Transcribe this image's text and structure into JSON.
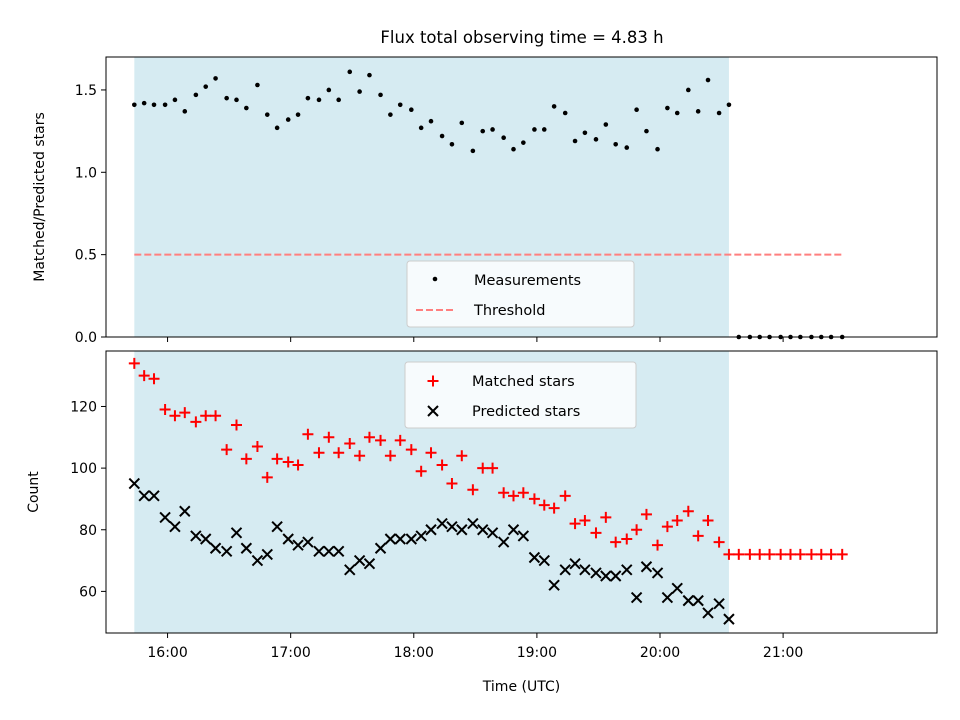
{
  "title": "Flux total observing time = 4.83 h",
  "chart_data": [
    {
      "type": "scatter",
      "panel": "top",
      "ylabel": "Matched/Predicted stars",
      "ylim": [
        0,
        1.7
      ],
      "yticks": [
        0.0,
        0.5,
        1.0,
        1.5
      ],
      "ytick_labels": [
        "0.0",
        "0.5",
        "1.0",
        "1.5"
      ],
      "x_unit": "hours (UTC)",
      "xlim": [
        15.5,
        22.25
      ],
      "shaded_interval": [
        15.73,
        20.56
      ],
      "shade_color": "#add8e6",
      "legend_position": "lower-center",
      "series": [
        {
          "name": "Measurements",
          "marker": "dot",
          "color": "#000000",
          "x": [
            15.73,
            15.81,
            15.89,
            15.98,
            16.06,
            16.14,
            16.23,
            16.31,
            16.39,
            16.48,
            16.56,
            16.64,
            16.73,
            16.81,
            16.89,
            16.98,
            17.06,
            17.14,
            17.23,
            17.31,
            17.39,
            17.48,
            17.56,
            17.64,
            17.73,
            17.81,
            17.89,
            17.98,
            18.06,
            18.14,
            18.23,
            18.31,
            18.39,
            18.48,
            18.56,
            18.64,
            18.73,
            18.81,
            18.89,
            18.98,
            19.06,
            19.14,
            19.23,
            19.31,
            19.39,
            19.48,
            19.56,
            19.64,
            19.73,
            19.81,
            19.89,
            19.98,
            20.06,
            20.14,
            20.23,
            20.31,
            20.39,
            20.48,
            20.56,
            20.64,
            20.73,
            20.81,
            20.89,
            20.98,
            21.06,
            21.14,
            21.23,
            21.31,
            21.39,
            21.48
          ],
          "y": [
            1.41,
            1.42,
            1.41,
            1.41,
            1.44,
            1.37,
            1.47,
            1.52,
            1.57,
            1.45,
            1.44,
            1.39,
            1.53,
            1.35,
            1.27,
            1.32,
            1.35,
            1.45,
            1.44,
            1.5,
            1.44,
            1.61,
            1.49,
            1.59,
            1.47,
            1.35,
            1.41,
            1.38,
            1.27,
            1.31,
            1.22,
            1.17,
            1.3,
            1.13,
            1.25,
            1.26,
            1.21,
            1.14,
            1.18,
            1.26,
            1.26,
            1.4,
            1.36,
            1.19,
            1.24,
            1.2,
            1.29,
            1.17,
            1.15,
            1.38,
            1.25,
            1.14,
            1.39,
            1.36,
            1.5,
            1.37,
            1.56,
            1.36,
            1.41,
            0,
            0,
            0,
            0,
            0,
            0,
            0,
            0,
            0,
            0,
            0
          ]
        },
        {
          "name": "Threshold",
          "marker": "dashed-line",
          "color": "#ff7f7f",
          "x": [
            15.73,
            21.48
          ],
          "y": [
            0.5,
            0.5
          ]
        }
      ]
    },
    {
      "type": "scatter",
      "panel": "bottom",
      "xlabel": "Time (UTC)",
      "ylabel": "Count",
      "ylim": [
        46.5,
        138
      ],
      "yticks": [
        60,
        80,
        100,
        120
      ],
      "ytick_labels": [
        "60",
        "80",
        "100",
        "120"
      ],
      "xticks": [
        16,
        17,
        18,
        19,
        20,
        21
      ],
      "xtick_labels": [
        "16:00",
        "17:00",
        "18:00",
        "19:00",
        "20:00",
        "21:00"
      ],
      "x_unit": "hours (UTC)",
      "xlim": [
        15.5,
        22.25
      ],
      "shaded_interval": [
        15.73,
        20.56
      ],
      "shade_color": "#add8e6",
      "legend_position": "upper-center",
      "series": [
        {
          "name": "Matched stars",
          "marker": "plus",
          "color": "#ff0000",
          "x": [
            15.73,
            15.81,
            15.89,
            15.98,
            16.06,
            16.14,
            16.23,
            16.31,
            16.39,
            16.48,
            16.56,
            16.64,
            16.73,
            16.81,
            16.89,
            16.98,
            17.06,
            17.14,
            17.23,
            17.31,
            17.39,
            17.48,
            17.56,
            17.64,
            17.73,
            17.81,
            17.89,
            17.98,
            18.06,
            18.14,
            18.23,
            18.31,
            18.39,
            18.48,
            18.56,
            18.64,
            18.73,
            18.81,
            18.89,
            18.98,
            19.06,
            19.14,
            19.23,
            19.31,
            19.39,
            19.48,
            19.56,
            19.64,
            19.73,
            19.81,
            19.89,
            19.98,
            20.06,
            20.14,
            20.23,
            20.31,
            20.39,
            20.48,
            20.56,
            20.64,
            20.73,
            20.81,
            20.89,
            20.98,
            21.06,
            21.14,
            21.23,
            21.31,
            21.39,
            21.48
          ],
          "y": [
            134,
            130,
            129,
            119,
            117,
            118,
            115,
            117,
            117,
            106,
            114,
            103,
            107,
            97,
            103,
            102,
            101,
            111,
            105,
            110,
            105,
            108,
            104,
            110,
            109,
            104,
            109,
            106,
            99,
            105,
            101,
            95,
            104,
            93,
            100,
            100,
            92,
            91,
            92,
            90,
            88,
            87,
            91,
            82,
            83,
            79,
            84,
            76,
            77,
            80,
            85,
            75,
            81,
            83,
            86,
            78,
            83,
            76,
            72,
            72,
            72,
            72,
            72,
            72,
            72,
            72,
            72,
            72,
            72,
            72
          ]
        },
        {
          "name": "Predicted stars",
          "marker": "x",
          "color": "#000000",
          "x": [
            15.73,
            15.81,
            15.89,
            15.98,
            16.06,
            16.14,
            16.23,
            16.31,
            16.39,
            16.48,
            16.56,
            16.64,
            16.73,
            16.81,
            16.89,
            16.98,
            17.06,
            17.14,
            17.23,
            17.31,
            17.39,
            17.48,
            17.56,
            17.64,
            17.73,
            17.81,
            17.89,
            17.98,
            18.06,
            18.14,
            18.23,
            18.31,
            18.39,
            18.48,
            18.56,
            18.64,
            18.73,
            18.81,
            18.89,
            18.98,
            19.06,
            19.14,
            19.23,
            19.31,
            19.39,
            19.48,
            19.56,
            19.64,
            19.73,
            19.81,
            19.89,
            19.98,
            20.06,
            20.14,
            20.23,
            20.31,
            20.39,
            20.48,
            20.56
          ],
          "y": [
            95,
            91,
            91,
            84,
            81,
            86,
            78,
            77,
            74,
            73,
            79,
            74,
            70,
            72,
            81,
            77,
            75,
            76,
            73,
            73,
            73,
            67,
            70,
            69,
            74,
            77,
            77,
            77,
            78,
            80,
            82,
            81,
            80,
            82,
            80,
            79,
            76,
            80,
            78,
            71,
            70,
            62,
            67,
            69,
            67,
            66,
            65,
            65,
            67,
            58,
            68,
            66,
            58,
            61,
            57,
            57,
            53,
            56,
            51
          ]
        }
      ]
    }
  ]
}
